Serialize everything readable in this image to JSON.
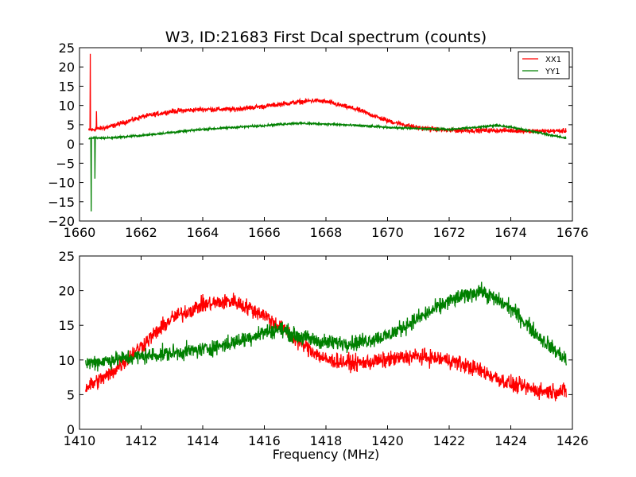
{
  "chart_data": [
    {
      "type": "line",
      "title": "W3, ID:21683 First Dcal spectrum (counts)",
      "xlabel": "",
      "ylabel": "",
      "xlim": [
        1660,
        1676
      ],
      "ylim": [
        -20,
        25
      ],
      "xticks": [
        "1660",
        "1662",
        "1664",
        "1666",
        "1668",
        "1670",
        "1672",
        "1674",
        "1676"
      ],
      "yticks": [
        "−20",
        "−15",
        "−10",
        "−5",
        "0",
        "5",
        "10",
        "15",
        "20",
        "25"
      ],
      "grid": false,
      "legend": "top-right",
      "series": [
        {
          "name": "XX1",
          "color": "#ff0000",
          "noise": 0.9,
          "x": [
            1660.3,
            1661.0,
            1662.0,
            1663.0,
            1664.0,
            1665.0,
            1666.0,
            1667.0,
            1667.6,
            1668.0,
            1669.0,
            1670.0,
            1671.0,
            1672.0,
            1673.0,
            1674.0,
            1675.0,
            1675.8
          ],
          "y": [
            3.5,
            4.5,
            7.0,
            8.5,
            9.0,
            9.0,
            9.8,
            10.8,
            11.3,
            11.0,
            9.0,
            6.0,
            4.2,
            3.5,
            3.5,
            3.5,
            3.3,
            3.4
          ]
        },
        {
          "name": "YY1",
          "color": "#008000",
          "noise": 0.4,
          "x": [
            1660.3,
            1661.0,
            1662.0,
            1663.0,
            1664.0,
            1665.0,
            1666.0,
            1667.0,
            1668.0,
            1669.0,
            1670.0,
            1671.0,
            1672.0,
            1673.0,
            1673.5,
            1674.0,
            1675.0,
            1675.8
          ],
          "y": [
            1.5,
            1.6,
            2.2,
            3.0,
            3.8,
            4.3,
            4.8,
            5.4,
            5.2,
            4.8,
            4.3,
            4.0,
            3.8,
            4.4,
            4.8,
            4.4,
            2.8,
            1.5
          ]
        }
      ],
      "spikes": [
        {
          "series": "XX1",
          "x": 1660.35,
          "y": 23.4
        },
        {
          "series": "XX1",
          "x": 1660.55,
          "y": 8.5
        },
        {
          "series": "YY1",
          "x": 1660.38,
          "y": -17.5
        },
        {
          "series": "YY1",
          "x": 1660.5,
          "y": -9.0
        }
      ]
    },
    {
      "type": "line",
      "title": "",
      "xlabel": "Frequency (MHz)",
      "ylabel": "",
      "xlim": [
        1410,
        1426
      ],
      "ylim": [
        0,
        25
      ],
      "xticks": [
        "1410",
        "1412",
        "1414",
        "1416",
        "1418",
        "1420",
        "1422",
        "1424",
        "1426"
      ],
      "yticks": [
        "0",
        "5",
        "10",
        "15",
        "20",
        "25"
      ],
      "grid": false,
      "legend": "none",
      "series": [
        {
          "name": "XX1",
          "color": "#ff0000",
          "noise": 1.7,
          "x": [
            1410.2,
            1411.0,
            1412.0,
            1413.0,
            1414.0,
            1415.0,
            1416.0,
            1417.0,
            1418.0,
            1419.0,
            1420.0,
            1420.8,
            1421.0,
            1422.0,
            1423.0,
            1424.0,
            1425.0,
            1425.8
          ],
          "y": [
            6.0,
            8.0,
            12.0,
            16.0,
            18.0,
            18.5,
            16.5,
            13.0,
            10.0,
            9.5,
            10.0,
            10.5,
            10.5,
            10.0,
            8.5,
            6.5,
            5.5,
            5.5
          ]
        },
        {
          "name": "YY1",
          "color": "#008000",
          "noise": 1.7,
          "x": [
            1410.2,
            1411.0,
            1412.0,
            1413.0,
            1414.0,
            1415.0,
            1416.0,
            1416.5,
            1417.0,
            1418.0,
            1419.0,
            1420.0,
            1421.0,
            1422.0,
            1423.0,
            1424.0,
            1425.0,
            1425.8
          ],
          "y": [
            9.5,
            10.0,
            10.5,
            11.0,
            11.5,
            12.5,
            14.0,
            14.5,
            13.5,
            12.5,
            12.5,
            13.5,
            16.0,
            18.5,
            20.0,
            17.5,
            13.0,
            10.0
          ]
        }
      ],
      "spikes": []
    }
  ]
}
